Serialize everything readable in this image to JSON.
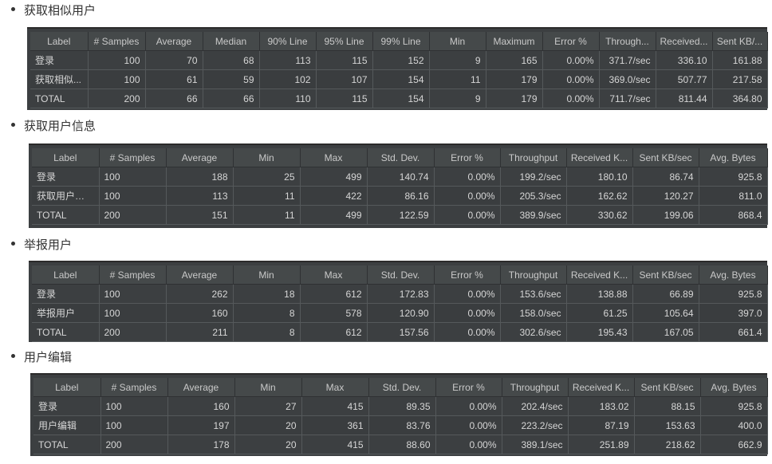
{
  "sections": [
    {
      "title": "获取相似用户",
      "headers": [
        "Label",
        "# Samples",
        "Average",
        "Median",
        "90% Line",
        "95% Line",
        "99% Line",
        "Min",
        "Maximum",
        "Error %",
        "Through...",
        "Received...",
        "Sent KB/..."
      ],
      "rows": [
        [
          "登录",
          "100",
          "70",
          "68",
          "113",
          "115",
          "152",
          "9",
          "165",
          "0.00%",
          "371.7/sec",
          "336.10",
          "161.88"
        ],
        [
          "获取相似...",
          "100",
          "61",
          "59",
          "102",
          "107",
          "154",
          "11",
          "179",
          "0.00%",
          "369.0/sec",
          "507.77",
          "217.58"
        ],
        [
          "TOTAL",
          "200",
          "66",
          "66",
          "110",
          "115",
          "154",
          "9",
          "179",
          "0.00%",
          "711.7/sec",
          "811.44",
          "364.80"
        ]
      ]
    },
    {
      "title": "获取用户信息",
      "headers": [
        "Label",
        "# Samples",
        "Average",
        "Min",
        "Max",
        "Std. Dev.",
        "Error %",
        "Throughput",
        "Received K...",
        "Sent KB/sec",
        "Avg. Bytes"
      ],
      "rows": [
        [
          "登录",
          "100",
          "188",
          "25",
          "499",
          "140.74",
          "0.00%",
          "199.2/sec",
          "180.10",
          "86.74",
          "925.8"
        ],
        [
          "获取用户信息",
          "100",
          "113",
          "11",
          "422",
          "86.16",
          "0.00%",
          "205.3/sec",
          "162.62",
          "120.27",
          "811.0"
        ],
        [
          "TOTAL",
          "200",
          "151",
          "11",
          "499",
          "122.59",
          "0.00%",
          "389.9/sec",
          "330.62",
          "199.06",
          "868.4"
        ]
      ]
    },
    {
      "title": "举报用户",
      "headers": [
        "Label",
        "# Samples",
        "Average",
        "Min",
        "Max",
        "Std. Dev.",
        "Error %",
        "Throughput",
        "Received K...",
        "Sent KB/sec",
        "Avg. Bytes"
      ],
      "rows": [
        [
          "登录",
          "100",
          "262",
          "18",
          "612",
          "172.83",
          "0.00%",
          "153.6/sec",
          "138.88",
          "66.89",
          "925.8"
        ],
        [
          "举报用户",
          "100",
          "160",
          "8",
          "578",
          "120.90",
          "0.00%",
          "158.0/sec",
          "61.25",
          "105.64",
          "397.0"
        ],
        [
          "TOTAL",
          "200",
          "211",
          "8",
          "612",
          "157.56",
          "0.00%",
          "302.6/sec",
          "195.43",
          "167.05",
          "661.4"
        ]
      ]
    },
    {
      "title": "用户编辑",
      "headers": [
        "Label",
        "# Samples",
        "Average",
        "Min",
        "Max",
        "Std. Dev.",
        "Error %",
        "Throughput",
        "Received K...",
        "Sent KB/sec",
        "Avg. Bytes"
      ],
      "rows": [
        [
          "登录",
          "100",
          "160",
          "27",
          "415",
          "89.35",
          "0.00%",
          "202.4/sec",
          "183.02",
          "88.15",
          "925.8"
        ],
        [
          "用户编辑",
          "100",
          "197",
          "20",
          "361",
          "83.76",
          "0.00%",
          "223.2/sec",
          "87.19",
          "153.63",
          "400.0"
        ],
        [
          "TOTAL",
          "200",
          "178",
          "20",
          "415",
          "88.60",
          "0.00%",
          "389.1/sec",
          "251.89",
          "218.62",
          "662.9"
        ]
      ]
    }
  ]
}
